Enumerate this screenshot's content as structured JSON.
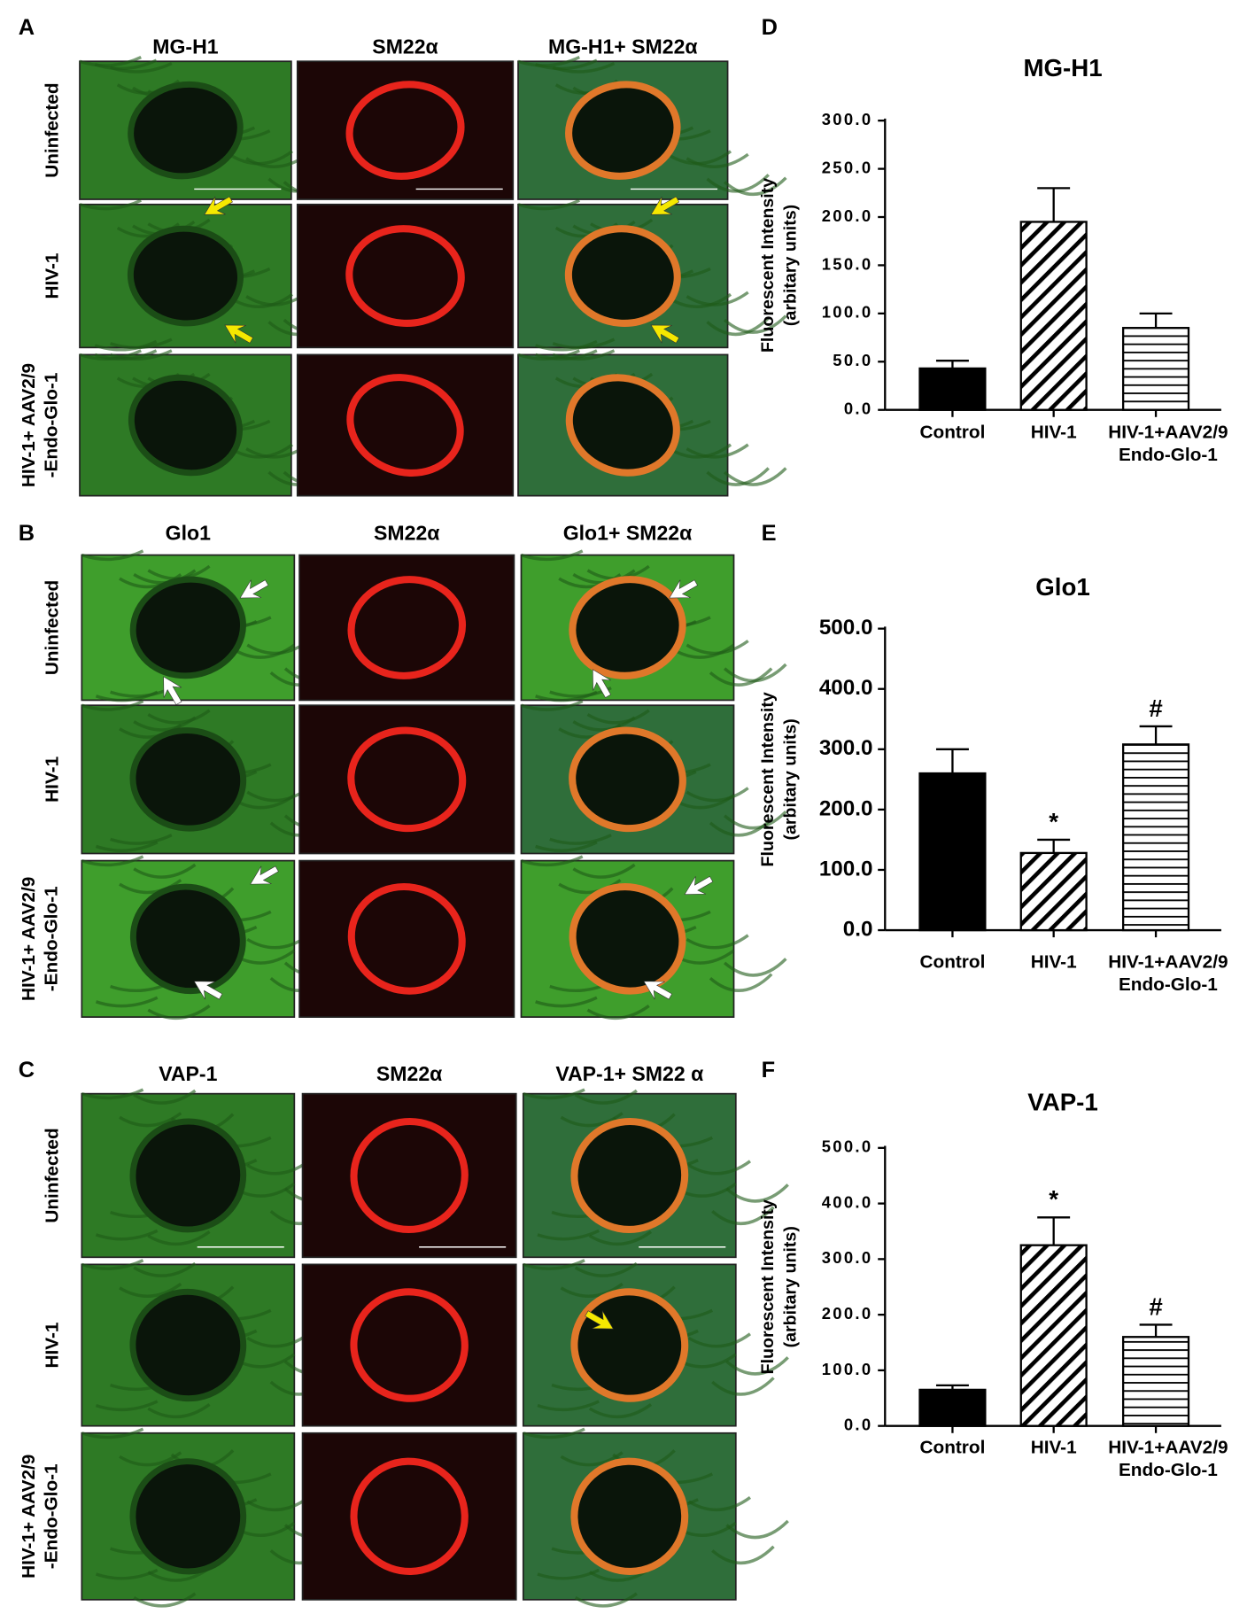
{
  "panels": [
    {
      "letter": "A",
      "columns": [
        "MG-H1",
        "SM22α",
        "MG-H1+ SM22α"
      ],
      "rows": [
        "Uninfected",
        "HIV-1",
        [
          "HIV-1+ AAV2/9",
          "-Endo-Glo-1"
        ]
      ]
    },
    {
      "letter": "B",
      "columns": [
        "Glo1",
        "SM22α",
        "Glo1+ SM22α"
      ],
      "rows": [
        "Uninfected",
        "HIV-1",
        [
          "HIV-1+ AAV2/9",
          "-Endo-Glo-1"
        ]
      ]
    },
    {
      "letter": "C",
      "columns": [
        "VAP-1",
        "SM22α",
        "VAP-1+ SM22 α"
      ],
      "rows": [
        "Uninfected",
        "HIV-1",
        [
          "HIV-1+ AAV2/9",
          "-Endo-Glo-1"
        ]
      ]
    }
  ],
  "chart_data": [
    {
      "type": "bar",
      "panel_label": "D",
      "title": "MG-H1",
      "ylabel": [
        "Fluorescent Intensity",
        "(arbitary units)"
      ],
      "categories": [
        "Control",
        "HIV-1",
        [
          "HIV-1+AAV2/9",
          "Endo-Glo-1"
        ]
      ],
      "values": [
        43,
        195,
        85
      ],
      "errors": [
        8,
        35,
        15
      ],
      "patterns": [
        "solid",
        "diagonal",
        "horizontal"
      ],
      "color": "#000000",
      "ylim": [
        0,
        300
      ],
      "yticks": [
        {
          "value": 0,
          "label": "0.0"
        },
        {
          "value": 50,
          "label": "50.0"
        },
        {
          "value": 100,
          "label": "100.0"
        },
        {
          "value": 150,
          "label": "150.0"
        },
        {
          "value": 200,
          "label": "200.0"
        },
        {
          "value": 250,
          "label": "250.0"
        },
        {
          "value": 300,
          "label": "300.0"
        }
      ]
    },
    {
      "type": "bar",
      "panel_label": "E",
      "title": "Glo1",
      "ylabel": [
        "Fluorescent Intensity",
        "(arbitary units)"
      ],
      "categories": [
        "Control",
        "HIV-1",
        [
          "HIV-1+AAV2/9",
          "Endo-Glo-1"
        ]
      ],
      "values": [
        260,
        128,
        308
      ],
      "errors": [
        40,
        22,
        30
      ],
      "annotations": [
        null,
        "*",
        "#"
      ],
      "patterns": [
        "solid",
        "diagonal",
        "horizontal"
      ],
      "color": "#000000",
      "ylim": [
        0,
        500
      ],
      "yticks": [
        {
          "value": 0,
          "label": "0.0"
        },
        {
          "value": 100,
          "label": "100.0"
        },
        {
          "value": 200,
          "label": "200.0"
        },
        {
          "value": 300,
          "label": "300.0"
        },
        {
          "value": 400,
          "label": "400.0"
        },
        {
          "value": 500,
          "label": "500.0"
        }
      ]
    },
    {
      "type": "bar",
      "panel_label": "F",
      "title": "VAP-1",
      "ylabel": [
        "Fluorescent Intensity",
        "(arbitary units)"
      ],
      "categories": [
        "Control",
        "HIV-1",
        [
          "HIV-1+AAV2/9",
          "Endo-Glo-1"
        ]
      ],
      "values": [
        65,
        325,
        160
      ],
      "errors": [
        8,
        50,
        22
      ],
      "annotations": [
        null,
        "*",
        "#"
      ],
      "patterns": [
        "solid",
        "diagonal",
        "horizontal"
      ],
      "color": "#000000",
      "ylim": [
        0,
        500
      ],
      "yticks": [
        {
          "value": 0,
          "label": "0.0"
        },
        {
          "value": 100,
          "label": "100.0"
        },
        {
          "value": 200,
          "label": "200.0"
        },
        {
          "value": 300,
          "label": "300.0"
        },
        {
          "value": 400,
          "label": "400.0"
        },
        {
          "value": 500,
          "label": "500.0"
        }
      ]
    }
  ]
}
